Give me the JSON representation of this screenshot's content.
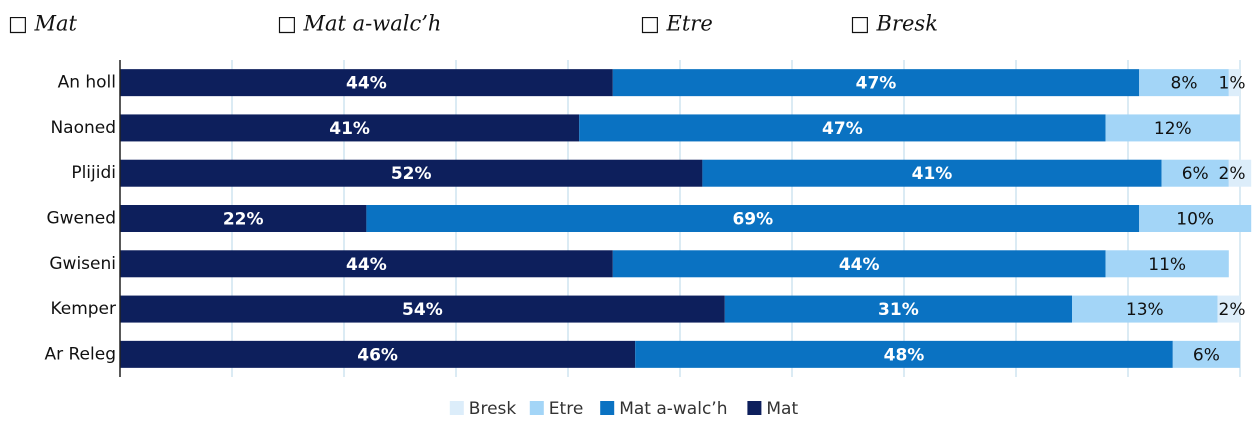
{
  "header_labels": [
    "□ Mat",
    "□ Mat a-walc’h",
    "□ Etre",
    "□ Bresk"
  ],
  "chart_data": {
    "type": "stacked-barh",
    "categories": [
      "An holl",
      "Naoned",
      "Plijidi",
      "Gwened",
      "Gwiseni",
      "Kemper",
      "Ar Releg"
    ],
    "series": [
      {
        "name": "Mat",
        "color": "#0d1f5c",
        "values": [
          44,
          41,
          52,
          22,
          44,
          54,
          46
        ],
        "value_labels": [
          "44%",
          "41%",
          "52%",
          "22%",
          "44%",
          "54%",
          "46%"
        ]
      },
      {
        "name": "Mat a-walc’h",
        "color": "#0a72c2",
        "values": [
          47,
          47,
          41,
          69,
          44,
          31,
          48
        ],
        "value_labels": [
          "47%",
          "47%",
          "41%",
          "69%",
          "44%",
          "31%",
          "48%"
        ]
      },
      {
        "name": "Etre",
        "color": "#a3d5f7",
        "values": [
          8,
          12,
          6,
          10,
          11,
          13,
          6
        ],
        "value_labels": [
          "8%",
          "12%",
          "6%",
          "10%",
          "11%",
          "13%",
          "6%"
        ]
      },
      {
        "name": "Bresk",
        "color": "#dcedfa",
        "values": [
          1,
          null,
          2,
          null,
          null,
          2,
          null
        ],
        "value_labels": [
          "1%",
          null,
          "2%",
          null,
          null,
          "2%",
          null
        ]
      }
    ],
    "xlim": [
      0,
      100
    ],
    "xticks": [
      0,
      10,
      20,
      30,
      40,
      50,
      60,
      70,
      80,
      90,
      100
    ],
    "grid": true,
    "legend": "bottom"
  }
}
